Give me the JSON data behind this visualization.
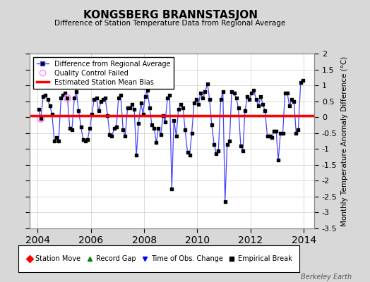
{
  "title": "KONGSBERG BRANNSTASJON",
  "subtitle": "Difference of Station Temperature Data from Regional Average",
  "ylabel": "Monthly Temperature Anomaly Difference (°C)",
  "xlabel_ticks": [
    2004,
    2006,
    2008,
    2010,
    2012,
    2014
  ],
  "ylim": [
    -3.5,
    2.0
  ],
  "yticks": [
    -3.5,
    -3.0,
    -2.5,
    -2.0,
    -1.5,
    -1.0,
    -0.5,
    0.0,
    0.5,
    1.0,
    1.5,
    2.0
  ],
  "bias_value": 0.05,
  "background_color": "#d8d8d8",
  "plot_bg_color": "#ffffff",
  "line_color": "#4444ff",
  "marker_color": "#000000",
  "bias_color": "#ff0000",
  "qc_fail_indices": [
    1,
    13
  ],
  "qc_fail_color": "#ff88ff",
  "watermark": "Berkeley Earth",
  "time_values": [
    2004.04,
    2004.12,
    2004.21,
    2004.29,
    2004.38,
    2004.46,
    2004.54,
    2004.63,
    2004.71,
    2004.79,
    2004.88,
    2004.96,
    2005.04,
    2005.12,
    2005.21,
    2005.29,
    2005.38,
    2005.46,
    2005.54,
    2005.63,
    2005.71,
    2005.79,
    2005.88,
    2005.96,
    2006.04,
    2006.12,
    2006.21,
    2006.29,
    2006.38,
    2006.46,
    2006.54,
    2006.63,
    2006.71,
    2006.79,
    2006.88,
    2006.96,
    2007.04,
    2007.12,
    2007.21,
    2007.29,
    2007.38,
    2007.46,
    2007.54,
    2007.63,
    2007.71,
    2007.79,
    2007.88,
    2007.96,
    2008.04,
    2008.12,
    2008.21,
    2008.29,
    2008.38,
    2008.46,
    2008.54,
    2008.63,
    2008.71,
    2008.79,
    2008.88,
    2008.96,
    2009.04,
    2009.12,
    2009.21,
    2009.29,
    2009.38,
    2009.46,
    2009.54,
    2009.63,
    2009.71,
    2009.79,
    2009.88,
    2009.96,
    2010.04,
    2010.12,
    2010.21,
    2010.29,
    2010.38,
    2010.46,
    2010.54,
    2010.63,
    2010.71,
    2010.79,
    2010.88,
    2010.96,
    2011.04,
    2011.12,
    2011.21,
    2011.29,
    2011.38,
    2011.46,
    2011.54,
    2011.63,
    2011.71,
    2011.79,
    2011.88,
    2011.96,
    2012.04,
    2012.12,
    2012.21,
    2012.29,
    2012.38,
    2012.46,
    2012.54,
    2012.63,
    2012.71,
    2012.79,
    2012.88,
    2012.96,
    2013.04,
    2013.12,
    2013.21,
    2013.29,
    2013.38,
    2013.46,
    2013.54,
    2013.63,
    2013.71,
    2013.79,
    2013.88,
    2013.96
  ],
  "data_values": [
    0.25,
    -0.05,
    0.65,
    0.7,
    0.55,
    0.35,
    0.1,
    -0.75,
    -0.65,
    -0.75,
    0.6,
    0.7,
    0.75,
    0.6,
    -0.35,
    -0.4,
    0.6,
    0.8,
    0.2,
    -0.3,
    -0.7,
    -0.75,
    -0.7,
    -0.35,
    0.1,
    0.55,
    0.6,
    0.2,
    0.5,
    0.55,
    0.6,
    0.05,
    -0.55,
    -0.6,
    -0.35,
    -0.3,
    0.6,
    0.7,
    -0.4,
    -0.6,
    0.3,
    0.3,
    0.4,
    0.25,
    -1.2,
    -0.2,
    0.45,
    0.1,
    0.65,
    0.85,
    0.3,
    -0.25,
    -0.35,
    -0.8,
    -0.35,
    -0.55,
    0.05,
    -0.15,
    0.6,
    0.7,
    -2.25,
    -0.1,
    -0.6,
    0.25,
    0.4,
    0.3,
    -0.4,
    -1.1,
    -1.2,
    -0.5,
    0.45,
    0.55,
    0.4,
    0.75,
    0.6,
    0.8,
    1.05,
    0.55,
    -0.25,
    -0.85,
    -1.15,
    -1.05,
    0.55,
    0.8,
    -2.65,
    -0.85,
    -0.75,
    0.8,
    0.75,
    0.6,
    0.3,
    -0.9,
    -1.05,
    0.2,
    0.65,
    0.55,
    0.75,
    0.85,
    0.55,
    0.35,
    0.65,
    0.4,
    0.2,
    -0.6,
    -0.6,
    -0.65,
    -0.45,
    -0.45,
    -1.35,
    -0.5,
    -0.5,
    0.75,
    0.75,
    0.35,
    0.55,
    0.5,
    -0.5,
    -0.4,
    1.1,
    1.15
  ]
}
